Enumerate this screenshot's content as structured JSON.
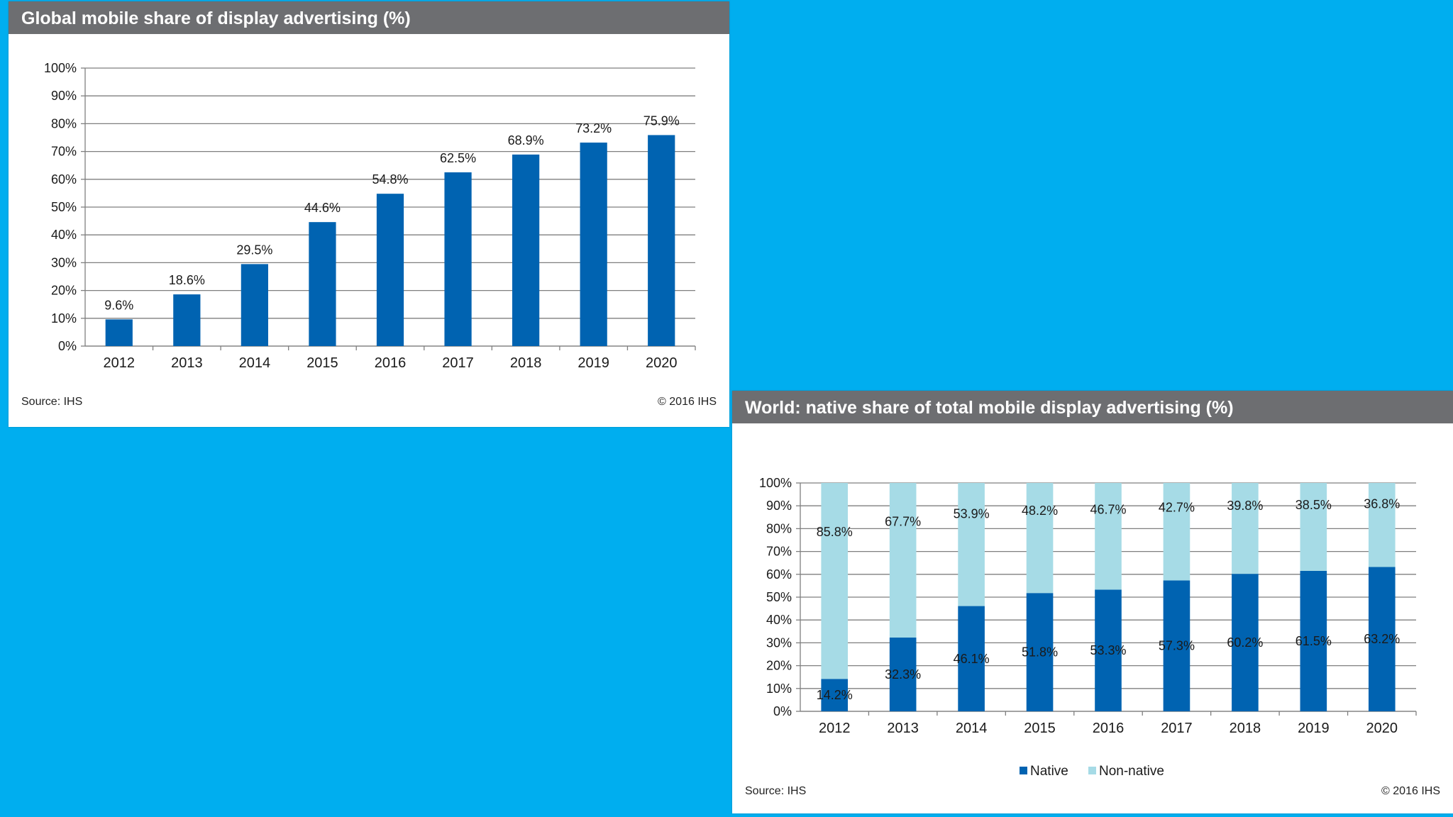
{
  "chart_data": [
    {
      "type": "bar",
      "title": "Global mobile share of display advertising (%)",
      "categories": [
        "2012",
        "2013",
        "2014",
        "2015",
        "2016",
        "2017",
        "2018",
        "2019",
        "2020"
      ],
      "values": [
        9.6,
        18.6,
        29.5,
        44.6,
        54.8,
        62.5,
        68.9,
        73.2,
        75.9
      ],
      "value_labels": [
        "9.6%",
        "18.6%",
        "29.5%",
        "44.6%",
        "54.8%",
        "62.5%",
        "68.9%",
        "73.2%",
        "75.9%"
      ],
      "ylim": [
        0,
        100
      ],
      "yticks": [
        "0%",
        "10%",
        "20%",
        "30%",
        "40%",
        "50%",
        "60%",
        "70%",
        "80%",
        "90%",
        "100%"
      ],
      "grid": true,
      "xlabel": "",
      "ylabel": "",
      "source": "Source: IHS",
      "copyright": "© 2016 IHS",
      "colors": {
        "bar": "#0063b1",
        "grid": "#7f7f7f",
        "header": "#6d6e71"
      }
    },
    {
      "type": "bar",
      "stacked": true,
      "title": "World: native share of total mobile display advertising (%)",
      "categories": [
        "2012",
        "2013",
        "2014",
        "2015",
        "2016",
        "2017",
        "2018",
        "2019",
        "2020"
      ],
      "series": [
        {
          "name": "Native",
          "values": [
            14.2,
            32.3,
            46.1,
            51.8,
            53.3,
            57.3,
            60.2,
            61.5,
            63.2
          ],
          "labels": [
            "14.2%",
            "32.3%",
            "46.1%",
            "51.8%",
            "53.3%",
            "57.3%",
            "60.2%",
            "61.5%",
            "63.2%"
          ]
        },
        {
          "name": "Non-native",
          "values": [
            85.8,
            67.7,
            53.9,
            48.2,
            46.7,
            42.7,
            39.8,
            38.5,
            36.8
          ],
          "labels": [
            "85.8%",
            "67.7%",
            "53.9%",
            "48.2%",
            "46.7%",
            "42.7%",
            "39.8%",
            "38.5%",
            "36.8%"
          ]
        }
      ],
      "ylim": [
        0,
        100
      ],
      "yticks": [
        "0%",
        "10%",
        "20%",
        "30%",
        "40%",
        "50%",
        "60%",
        "70%",
        "80%",
        "90%",
        "100%"
      ],
      "grid": true,
      "legend": "bottom",
      "source": "Source: IHS",
      "copyright": "© 2016 IHS",
      "colors": {
        "native": "#0063b1",
        "nonnative": "#a6dbe6",
        "grid": "#7f7f7f",
        "header": "#6d6e71"
      }
    }
  ]
}
